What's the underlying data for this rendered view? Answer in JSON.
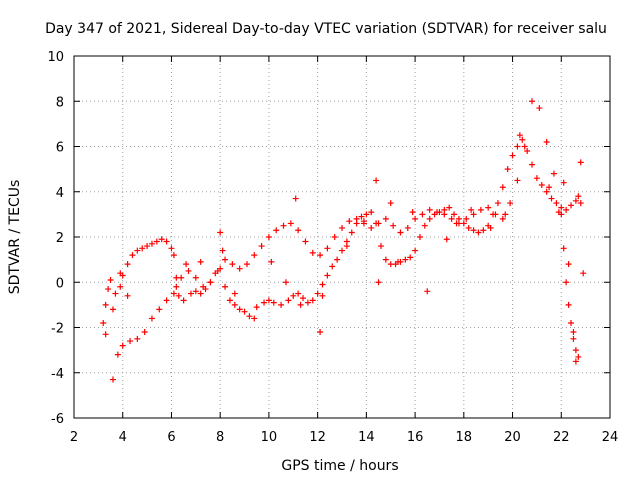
{
  "chart_data": {
    "type": "scatter",
    "title": "Day 347 of 2021, Sidereal Day-to-day VTEC variation (SDTVAR) for receiver salu",
    "xlabel": "GPS time / hours",
    "ylabel": "SDTVAR / TECUs",
    "xlim": [
      2,
      24
    ],
    "ylim": [
      -6,
      10
    ],
    "xticks": [
      "2",
      "4",
      "6",
      "8",
      "10",
      "12",
      "14",
      "16",
      "18",
      "20",
      "22",
      "24"
    ],
    "yticks": [
      "-6",
      "-4",
      "-2",
      "0",
      "2",
      "4",
      "6",
      "8",
      "10"
    ],
    "grid": true,
    "marker": "+",
    "color": "#ff0000",
    "series": [
      {
        "name": "SDTVAR",
        "x": [
          3.2,
          3.3,
          3.4,
          3.5,
          3.7,
          3.9,
          4.0,
          4.2,
          4.4,
          4.6,
          4.8,
          5.0,
          5.2,
          5.4,
          5.6,
          5.8,
          6.0,
          6.1,
          6.2,
          6.3,
          6.5,
          6.8,
          7.0,
          7.2,
          7.4,
          7.6,
          7.8,
          8.0,
          8.2,
          8.4,
          8.6,
          8.8,
          9.0,
          9.2,
          9.5,
          9.8,
          10.0,
          10.2,
          10.5,
          10.8,
          11.0,
          11.2,
          11.4,
          11.6,
          11.8,
          12.0,
          12.2,
          12.4,
          12.6,
          12.8,
          13.0,
          13.2,
          13.4,
          13.6,
          13.8,
          14.0,
          14.2,
          14.4,
          14.6,
          14.8,
          15.0,
          15.2,
          15.4,
          15.6,
          15.8,
          16.0,
          16.2,
          16.4,
          16.6,
          16.8,
          17.0,
          17.2,
          17.4,
          17.6,
          17.8,
          18.0,
          18.2,
          18.4,
          18.6,
          18.8,
          19.0,
          19.2,
          19.4,
          19.6,
          19.8,
          20.0,
          20.2,
          20.4,
          20.6,
          20.8,
          21.0,
          21.2,
          21.4,
          21.6,
          21.8,
          22.0,
          22.2,
          22.4,
          22.6,
          22.8,
          3.6,
          3.8,
          4.0,
          4.3,
          4.6,
          4.9,
          5.2,
          5.5,
          5.8,
          6.1,
          6.4,
          6.7,
          7.0,
          7.3,
          7.6,
          7.9,
          8.2,
          8.5,
          8.8,
          9.1,
          9.4,
          9.7,
          10.0,
          10.3,
          10.6,
          10.9,
          11.2,
          11.5,
          11.8,
          12.1,
          12.4,
          12.7,
          13.0,
          13.3,
          13.6,
          13.9,
          14.2,
          14.5,
          14.8,
          15.1,
          15.4,
          15.7,
          16.0,
          16.3,
          16.6,
          16.9,
          17.2,
          17.5,
          17.8,
          18.1,
          18.4,
          18.7,
          19.0,
          19.3,
          19.6,
          19.9,
          20.2,
          20.5,
          20.8,
          21.1,
          21.4,
          21.7,
          22.0,
          22.1,
          22.2,
          22.3,
          22.4,
          22.5,
          22.6,
          22.7,
          3.3,
          3.6,
          3.9,
          4.2,
          6.2,
          6.6,
          7.2,
          8.1,
          8.6,
          9.4,
          10.1,
          10.7,
          11.3,
          12.1,
          13.2,
          13.9,
          14.4,
          15.3,
          15.9,
          16.5,
          17.3,
          17.7,
          18.3,
          19.1,
          19.7,
          20.3,
          21.5,
          21.9,
          22.1,
          22.3,
          22.5,
          22.6,
          22.7,
          22.8,
          22.9,
          8.0,
          11.1,
          12.2,
          14.5,
          15.0
        ],
        "y": [
          -1.8,
          -1.0,
          -0.3,
          0.1,
          -0.5,
          -0.2,
          0.3,
          0.8,
          1.2,
          1.4,
          1.5,
          1.6,
          1.7,
          1.8,
          1.9,
          1.8,
          1.5,
          1.2,
          0.2,
          -0.6,
          -0.8,
          -0.5,
          -0.4,
          -0.5,
          -0.3,
          0.0,
          0.4,
          0.6,
          -0.2,
          -0.8,
          -1.0,
          -1.2,
          -1.3,
          -1.5,
          -1.1,
          -0.9,
          -0.8,
          -0.9,
          -1.0,
          -0.8,
          -0.6,
          -0.5,
          -0.7,
          -0.9,
          -0.8,
          -0.5,
          -0.1,
          0.3,
          0.7,
          1.0,
          1.4,
          1.8,
          2.2,
          2.6,
          2.9,
          3.0,
          3.1,
          2.6,
          1.6,
          1.0,
          0.8,
          0.8,
          0.9,
          1.0,
          1.1,
          1.4,
          2.0,
          2.5,
          2.8,
          3.0,
          3.1,
          3.2,
          3.3,
          3.0,
          2.8,
          2.6,
          2.4,
          2.3,
          2.2,
          2.3,
          2.5,
          3.0,
          3.5,
          4.2,
          5.0,
          5.6,
          6.0,
          6.3,
          5.8,
          5.2,
          4.6,
          4.3,
          4.0,
          3.7,
          3.5,
          3.3,
          3.2,
          3.4,
          3.6,
          3.5,
          -4.3,
          -3.2,
          -2.8,
          -2.6,
          -2.5,
          -2.2,
          -1.6,
          -1.2,
          -0.8,
          -0.5,
          0.2,
          0.5,
          0.2,
          -0.2,
          0.0,
          0.5,
          1.0,
          0.8,
          0.6,
          0.8,
          1.2,
          1.6,
          2.0,
          2.3,
          2.5,
          2.6,
          2.3,
          1.8,
          1.3,
          1.2,
          1.5,
          2.0,
          2.4,
          2.7,
          2.8,
          2.6,
          2.4,
          2.6,
          2.8,
          2.5,
          2.2,
          2.4,
          2.8,
          3.0,
          3.2,
          3.1,
          3.0,
          2.8,
          2.6,
          2.8,
          3.0,
          3.2,
          3.3,
          3.0,
          2.8,
          3.5,
          4.5,
          6.0,
          8.0,
          7.7,
          6.2,
          4.8,
          3.0,
          1.5,
          0.0,
          -1.0,
          -1.8,
          -2.5,
          -3.0,
          -3.3,
          -2.3,
          -1.2,
          0.4,
          -0.6,
          -0.2,
          0.8,
          0.9,
          1.4,
          -0.5,
          -1.6,
          0.9,
          0.0,
          -1.0,
          -2.2,
          1.6,
          2.7,
          4.5,
          0.9,
          3.1,
          -0.4,
          1.9,
          2.6,
          3.2,
          2.4,
          3.0,
          6.5,
          4.2,
          3.1,
          4.4,
          0.8,
          -2.2,
          -3.5,
          3.8,
          5.3,
          0.4,
          2.2,
          3.7,
          -0.6,
          0.0,
          3.5
        ]
      }
    ]
  }
}
